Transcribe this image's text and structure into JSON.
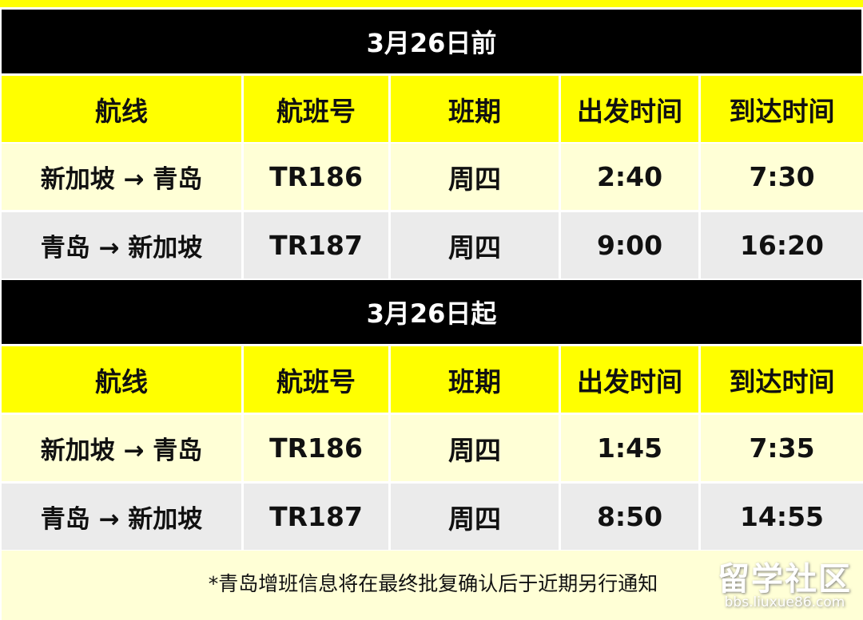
{
  "columns": [
    "航线",
    "航班号",
    "班期",
    "出发时间",
    "到达时间"
  ],
  "sections": [
    {
      "title": "3月26日前",
      "rows": [
        {
          "route": "新加坡 → 青岛",
          "flight": "TR186",
          "day": "周四",
          "depart": "2:40",
          "arrive": "7:30"
        },
        {
          "route": "青岛 → 新加坡",
          "flight": "TR187",
          "day": "周四",
          "depart": "9:00",
          "arrive": "16:20"
        }
      ]
    },
    {
      "title": "3月26日起",
      "rows": [
        {
          "route": "新加坡 → 青岛",
          "flight": "TR186",
          "day": "周四",
          "depart": "1:45",
          "arrive": "7:35"
        },
        {
          "route": "青岛 → 新加坡",
          "flight": "TR187",
          "day": "周四",
          "depart": "8:50",
          "arrive": "14:55"
        }
      ]
    }
  ],
  "footnote": "*青岛增班信息将在最终批复确认后于近期另行通知",
  "watermark": {
    "main": "留学社区",
    "sub": "bbs.liuxue86.com"
  },
  "colors": {
    "header_bg": "#ffff00",
    "band_bg": "#000000",
    "row_light": "#ffffd6",
    "row_gray": "#ebebeb"
  }
}
